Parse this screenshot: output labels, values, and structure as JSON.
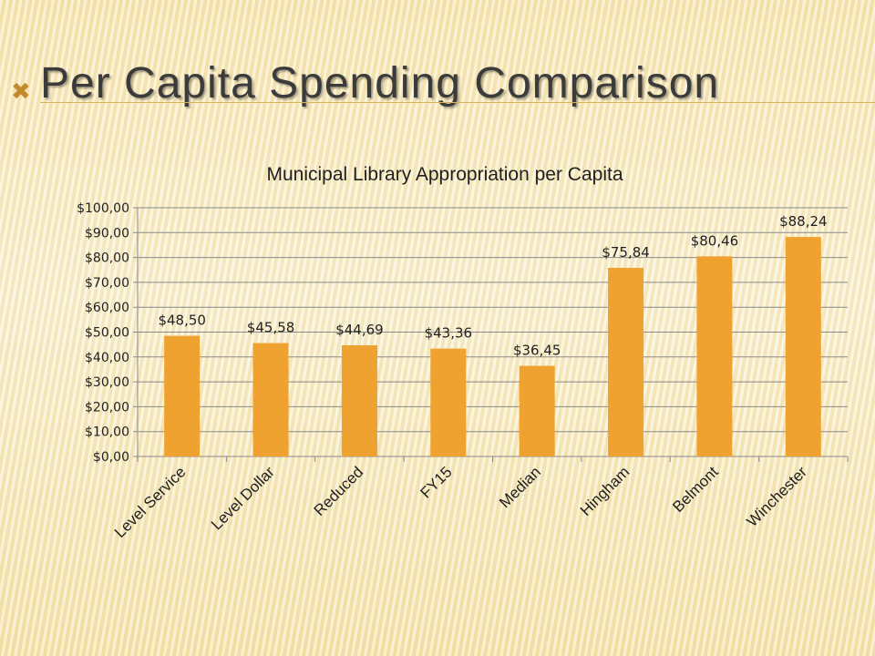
{
  "slide": {
    "title": "Per Capita Spending Comparison",
    "bullet": "✖"
  },
  "colors": {
    "bar": "#efa22f",
    "gridline": "#8a8a8a",
    "axis": "#8a8a8a",
    "title_text": "#3b3b3b",
    "accent_rule": "#d7b35d"
  },
  "chart_data": {
    "type": "bar",
    "title": "Municipal Library Appropriation per Capita",
    "xlabel": "",
    "ylabel": "",
    "categories": [
      "Level Service",
      "Level Dollar",
      "Reduced",
      "FY15",
      "Median",
      "Hingham",
      "Belmont",
      "Winchester"
    ],
    "values": [
      48.5,
      45.58,
      44.69,
      43.36,
      36.45,
      75.84,
      80.46,
      88.24
    ],
    "data_labels": [
      "$48,50",
      "$45,58",
      "$44,69",
      "$43,36",
      "$36,45",
      "$75,84",
      "$80,46",
      "$88,24"
    ],
    "ylim": [
      0,
      100
    ],
    "y_ticks": [
      0,
      10,
      20,
      30,
      40,
      50,
      60,
      70,
      80,
      90,
      100
    ],
    "y_tick_labels": [
      "$0,00",
      "$10,00",
      "$20,00",
      "$30,00",
      "$40,00",
      "$50,00",
      "$60,00",
      "$70,00",
      "$80,00",
      "$90,00",
      "$100,00"
    ],
    "grid": true,
    "legend": "none"
  }
}
